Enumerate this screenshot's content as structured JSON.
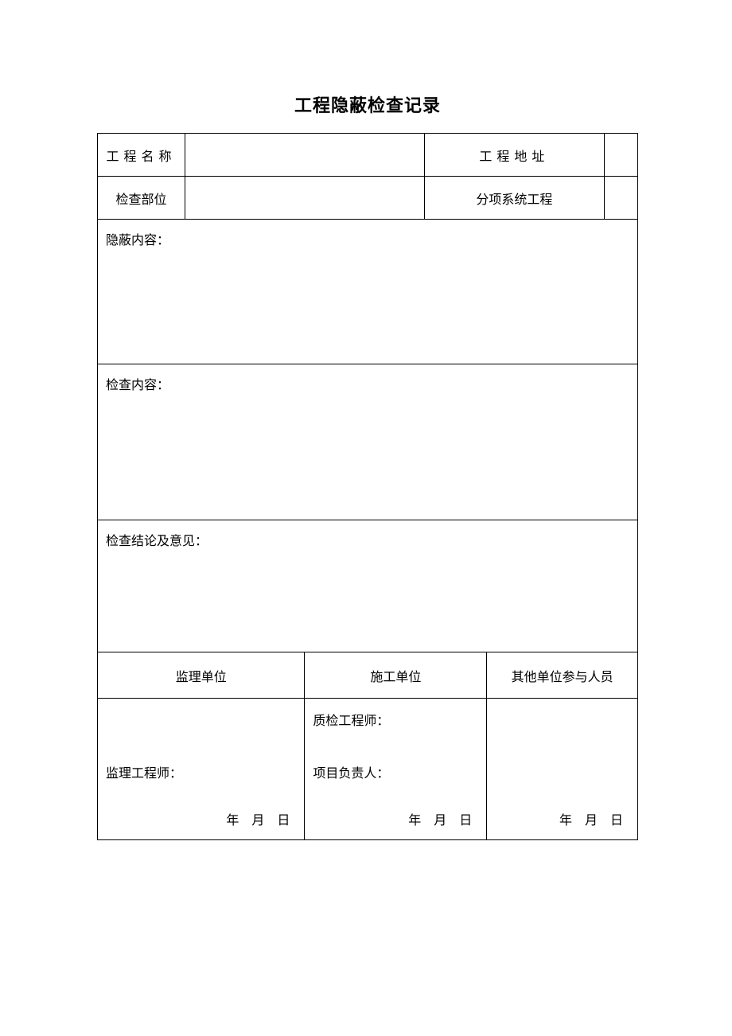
{
  "title": "工程隐蔽检查记录",
  "table": {
    "row1": {
      "label1": "工程名称",
      "value1": "",
      "label2": "工程地址",
      "value2": ""
    },
    "row2": {
      "label1": "检查部位",
      "value1": "",
      "label2": "分项系统工程",
      "value2": ""
    },
    "section1": {
      "label": "隐蔽内容："
    },
    "section2": {
      "label": "检查内容："
    },
    "section3": {
      "label": "检查结论及意见："
    },
    "units": {
      "col1": "监理单位",
      "col2": "施工单位",
      "col3": "其他单位参与人员"
    },
    "signatures": {
      "col1": {
        "line1": "监理工程师："
      },
      "col2": {
        "line1": "质检工程师：",
        "line2": "项目负责人："
      }
    },
    "date": {
      "year": "年",
      "month": "月",
      "day": "日"
    }
  },
  "styling": {
    "background_color": "#ffffff",
    "border_color": "#000000",
    "text_color": "#000000",
    "title_fontsize": 22,
    "body_fontsize": 16,
    "font_family": "SimSun"
  }
}
